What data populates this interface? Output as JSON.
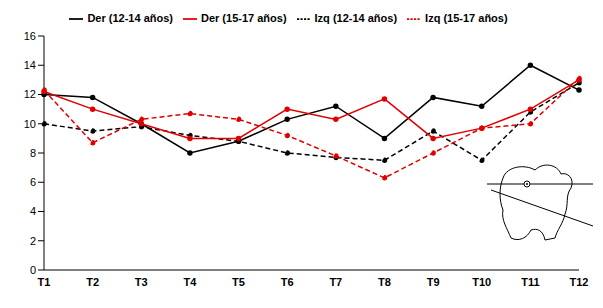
{
  "chart_data": {
    "type": "line",
    "categories": [
      "T1",
      "T2",
      "T3",
      "T4",
      "T5",
      "T6",
      "T7",
      "T8",
      "T9",
      "T10",
      "T11",
      "T12"
    ],
    "series": [
      {
        "name": "Der (12-14 años)",
        "color": "#000000",
        "line_style": "solid",
        "marker": "circle",
        "values": [
          12,
          11.8,
          10,
          8,
          8.8,
          10.3,
          11.2,
          9,
          11.8,
          11.2,
          14,
          12.3
        ]
      },
      {
        "name": "Izq (12-14 años)",
        "color": "#000000",
        "line_style": "dashed",
        "marker": "circle",
        "values": [
          10,
          9.5,
          9.8,
          9.2,
          8.8,
          8,
          7.7,
          7.5,
          9.5,
          7.5,
          10.8,
          12.8
        ]
      },
      {
        "name": "Der (15-17 años)",
        "color": "#e00000",
        "line_style": "solid",
        "marker": "circle",
        "values": [
          12.2,
          11,
          10,
          9,
          9,
          11,
          10.3,
          11.7,
          9,
          9.7,
          11,
          13
        ]
      },
      {
        "name": "Izq (15-17 años)",
        "color": "#e00000",
        "line_style": "dashed",
        "marker": "circle",
        "values": [
          12.3,
          8.7,
          10.3,
          10.7,
          10.3,
          9.2,
          7.8,
          6.3,
          8,
          9.7,
          10,
          13.1
        ]
      }
    ],
    "ylim": [
      0,
      16
    ],
    "yticks": [
      0,
      2,
      4,
      6,
      8,
      10,
      12,
      14,
      16
    ],
    "legend": "top",
    "grid": false
  }
}
